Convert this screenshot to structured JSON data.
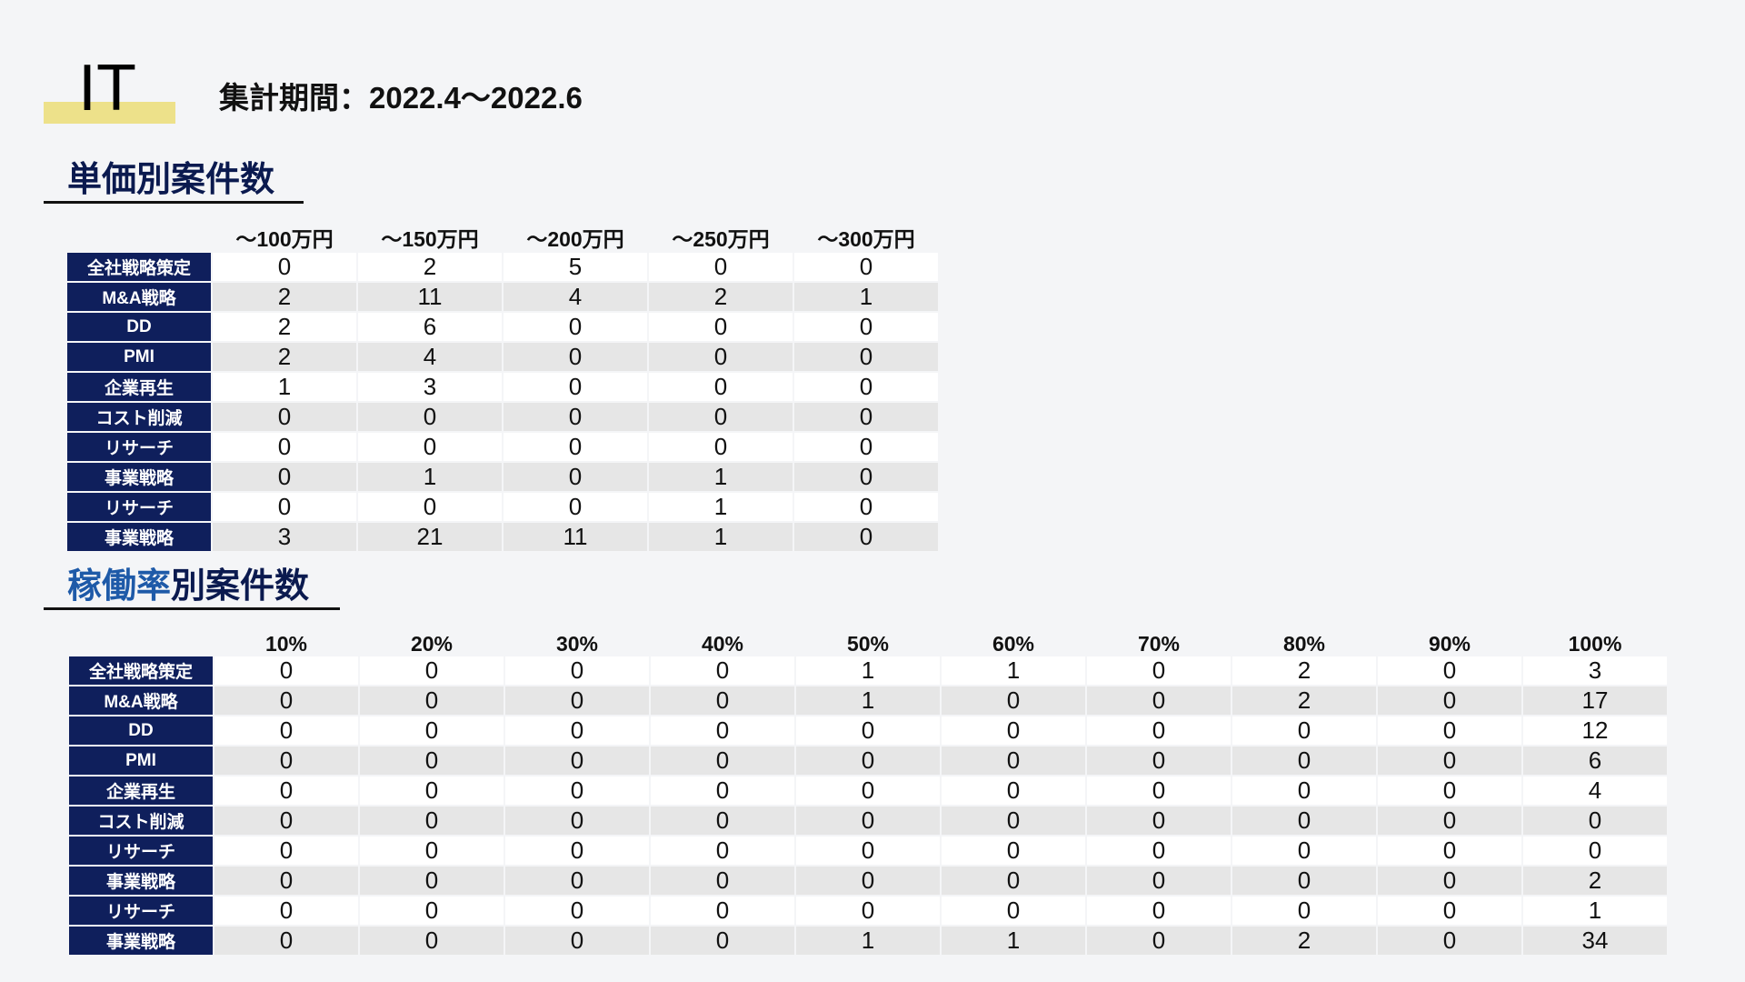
{
  "header": {
    "tag": "IT",
    "period": "集計期間：2022.4〜2022.6"
  },
  "colors": {
    "row_header_bg": "#0f1f5c",
    "accent_bar": "#ede18a",
    "title": "#0b1a4f"
  },
  "section1": {
    "title_main": "単価別案件数",
    "columns": [
      "〜100万円",
      "〜150万円",
      "〜200万円",
      "〜250万円",
      "〜300万円"
    ],
    "rows": [
      {
        "label": "全社戦略策定",
        "values": [
          "0",
          "2",
          "5",
          "0",
          "0"
        ]
      },
      {
        "label": "M&A戦略",
        "values": [
          "2",
          "11",
          "4",
          "2",
          "1"
        ]
      },
      {
        "label": "DD",
        "values": [
          "2",
          "6",
          "0",
          "0",
          "0"
        ]
      },
      {
        "label": "PMI",
        "values": [
          "2",
          "4",
          "0",
          "0",
          "0"
        ]
      },
      {
        "label": "企業再生",
        "values": [
          "1",
          "3",
          "0",
          "0",
          "0"
        ]
      },
      {
        "label": "コスト削減",
        "values": [
          "0",
          "0",
          "0",
          "0",
          "0"
        ]
      },
      {
        "label": "リサーチ",
        "values": [
          "0",
          "0",
          "0",
          "0",
          "0"
        ]
      },
      {
        "label": "事業戦略",
        "values": [
          "0",
          "1",
          "0",
          "1",
          "0"
        ]
      },
      {
        "label": "リサーチ",
        "values": [
          "0",
          "0",
          "0",
          "1",
          "0"
        ]
      },
      {
        "label": "事業戦略",
        "values": [
          "3",
          "21",
          "11",
          "1",
          "0"
        ]
      }
    ]
  },
  "section2": {
    "title_accent": "稼働率",
    "title_rest": "別案件数",
    "columns": [
      "10%",
      "20%",
      "30%",
      "40%",
      "50%",
      "60%",
      "70%",
      "80%",
      "90%",
      "100%"
    ],
    "rows": [
      {
        "label": "全社戦略策定",
        "values": [
          "0",
          "0",
          "0",
          "0",
          "1",
          "1",
          "0",
          "2",
          "0",
          "3"
        ]
      },
      {
        "label": "M&A戦略",
        "values": [
          "0",
          "0",
          "0",
          "0",
          "1",
          "0",
          "0",
          "2",
          "0",
          "17"
        ]
      },
      {
        "label": "DD",
        "values": [
          "0",
          "0",
          "0",
          "0",
          "0",
          "0",
          "0",
          "0",
          "0",
          "12"
        ]
      },
      {
        "label": "PMI",
        "values": [
          "0",
          "0",
          "0",
          "0",
          "0",
          "0",
          "0",
          "0",
          "0",
          "6"
        ]
      },
      {
        "label": "企業再生",
        "values": [
          "0",
          "0",
          "0",
          "0",
          "0",
          "0",
          "0",
          "0",
          "0",
          "4"
        ]
      },
      {
        "label": "コスト削減",
        "values": [
          "0",
          "0",
          "0",
          "0",
          "0",
          "0",
          "0",
          "0",
          "0",
          "0"
        ]
      },
      {
        "label": "リサーチ",
        "values": [
          "0",
          "0",
          "0",
          "0",
          "0",
          "0",
          "0",
          "0",
          "0",
          "0"
        ]
      },
      {
        "label": "事業戦略",
        "values": [
          "0",
          "0",
          "0",
          "0",
          "0",
          "0",
          "0",
          "0",
          "0",
          "2"
        ]
      },
      {
        "label": "リサーチ",
        "values": [
          "0",
          "0",
          "0",
          "0",
          "0",
          "0",
          "0",
          "0",
          "0",
          "1"
        ]
      },
      {
        "label": "事業戦略",
        "values": [
          "0",
          "0",
          "0",
          "0",
          "1",
          "1",
          "0",
          "2",
          "0",
          "34"
        ]
      }
    ]
  }
}
